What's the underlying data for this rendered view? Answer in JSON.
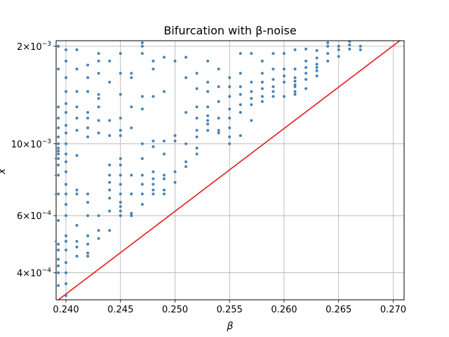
{
  "chart_data": {
    "type": "scatter",
    "title": "Bifurcation with β-noise",
    "xlabel": "β",
    "ylabel": "x",
    "xlim": [
      0.2391,
      0.271
    ],
    "ylim": [
      0.00033,
      0.00208
    ],
    "y_scale": "log",
    "grid": true,
    "x_ticks": [
      {
        "value": 0.24,
        "label": "0.240"
      },
      {
        "value": 0.245,
        "label": "0.245"
      },
      {
        "value": 0.25,
        "label": "0.250"
      },
      {
        "value": 0.255,
        "label": "0.255"
      },
      {
        "value": 0.26,
        "label": "0.260"
      },
      {
        "value": 0.265,
        "label": "0.265"
      },
      {
        "value": 0.27,
        "label": "0.270"
      }
    ],
    "y_ticks": [
      {
        "value": 0.0004,
        "mantissa": "4",
        "exponent": "−4"
      },
      {
        "value": 0.0006,
        "mantissa": "6",
        "exponent": "−4"
      },
      {
        "value": 0.001,
        "mantissa": "10",
        "exponent": "−3"
      },
      {
        "value": 0.002,
        "mantissa": "2",
        "exponent": "−3"
      }
    ],
    "y_ticks_minor": [
      0.0005,
      0.0007,
      0.0008,
      0.0009
    ],
    "colors": {
      "points": "#4682b4",
      "line": "#e31a1c",
      "grid": "#b0b0b0"
    },
    "boundary_line": {
      "x": [
        0.2391,
        0.2706
      ],
      "y": [
        0.000326,
        0.00208
      ]
    },
    "points": [
      [
        0.2393,
        0.000365
      ],
      [
        0.2393,
        0.0004
      ],
      [
        0.2393,
        0.00042
      ],
      [
        0.2393,
        0.00044
      ],
      [
        0.2393,
        0.00047
      ],
      [
        0.2393,
        0.00049
      ],
      [
        0.2393,
        0.00058
      ],
      [
        0.2393,
        0.0007
      ],
      [
        0.2393,
        0.0008
      ],
      [
        0.2393,
        0.00086
      ],
      [
        0.2393,
        0.0009
      ],
      [
        0.2393,
        0.00093
      ],
      [
        0.2393,
        0.00095
      ],
      [
        0.2393,
        0.00097
      ],
      [
        0.2393,
        0.001
      ],
      [
        0.2393,
        0.00105
      ],
      [
        0.2393,
        0.00112
      ],
      [
        0.2393,
        0.0012
      ],
      [
        0.2393,
        0.0013
      ],
      [
        0.2393,
        0.0017
      ],
      [
        0.2393,
        0.002
      ],
      [
        0.24,
        0.00034
      ],
      [
        0.24,
        0.00037
      ],
      [
        0.24,
        0.0004
      ],
      [
        0.24,
        0.00043
      ],
      [
        0.24,
        0.00047
      ],
      [
        0.24,
        0.0005
      ],
      [
        0.24,
        0.00052
      ],
      [
        0.24,
        0.0006
      ],
      [
        0.24,
        0.00065
      ],
      [
        0.24,
        0.0007
      ],
      [
        0.24,
        0.00075
      ],
      [
        0.24,
        0.00082
      ],
      [
        0.24,
        0.00088
      ],
      [
        0.24,
        0.00093
      ],
      [
        0.24,
        0.001
      ],
      [
        0.24,
        0.00108
      ],
      [
        0.24,
        0.00114
      ],
      [
        0.24,
        0.00125
      ],
      [
        0.24,
        0.00133
      ],
      [
        0.24,
        0.00145
      ],
      [
        0.24,
        0.0016
      ],
      [
        0.24,
        0.0018
      ],
      [
        0.24,
        0.00195
      ],
      [
        0.241,
        0.00045
      ],
      [
        0.241,
        0.00048
      ],
      [
        0.241,
        0.0005
      ],
      [
        0.241,
        0.00056
      ],
      [
        0.241,
        0.0007
      ],
      [
        0.241,
        0.00072
      ],
      [
        0.241,
        0.00092
      ],
      [
        0.241,
        0.0011
      ],
      [
        0.241,
        0.0012
      ],
      [
        0.241,
        0.0013
      ],
      [
        0.241,
        0.00145
      ],
      [
        0.241,
        0.0017
      ],
      [
        0.241,
        0.00195
      ],
      [
        0.242,
        0.00045
      ],
      [
        0.242,
        0.00046
      ],
      [
        0.242,
        0.00049
      ],
      [
        0.242,
        0.00052
      ],
      [
        0.242,
        0.0006
      ],
      [
        0.242,
        0.00066
      ],
      [
        0.242,
        0.0007
      ],
      [
        0.242,
        0.00105
      ],
      [
        0.242,
        0.00112
      ],
      [
        0.242,
        0.0012
      ],
      [
        0.242,
        0.00125
      ],
      [
        0.242,
        0.00145
      ],
      [
        0.242,
        0.0016
      ],
      [
        0.242,
        0.00175
      ],
      [
        0.243,
        0.00051
      ],
      [
        0.243,
        0.00054
      ],
      [
        0.243,
        0.0006
      ],
      [
        0.243,
        0.00108
      ],
      [
        0.243,
        0.00118
      ],
      [
        0.243,
        0.0013
      ],
      [
        0.243,
        0.00138
      ],
      [
        0.243,
        0.00142
      ],
      [
        0.243,
        0.00165
      ],
      [
        0.243,
        0.0018
      ],
      [
        0.243,
        0.0019
      ],
      [
        0.244,
        0.00054
      ],
      [
        0.244,
        0.00062
      ],
      [
        0.244,
        0.00068
      ],
      [
        0.244,
        0.00072
      ],
      [
        0.244,
        0.00076
      ],
      [
        0.244,
        0.0008
      ],
      [
        0.244,
        0.00086
      ],
      [
        0.244,
        0.00106
      ],
      [
        0.244,
        0.00118
      ],
      [
        0.244,
        0.00155
      ],
      [
        0.244,
        0.0018
      ],
      [
        0.245,
        0.0006
      ],
      [
        0.245,
        0.00062
      ],
      [
        0.245,
        0.00064
      ],
      [
        0.245,
        0.00066
      ],
      [
        0.245,
        0.0007
      ],
      [
        0.245,
        0.00075
      ],
      [
        0.245,
        0.0008
      ],
      [
        0.245,
        0.00086
      ],
      [
        0.245,
        0.0009
      ],
      [
        0.245,
        0.00106
      ],
      [
        0.245,
        0.0011
      ],
      [
        0.245,
        0.0012
      ],
      [
        0.245,
        0.00142
      ],
      [
        0.245,
        0.00165
      ],
      [
        0.245,
        0.0019
      ],
      [
        0.246,
        0.0006
      ],
      [
        0.246,
        0.00061
      ],
      [
        0.246,
        0.0007
      ],
      [
        0.246,
        0.0008
      ],
      [
        0.246,
        0.00112
      ],
      [
        0.246,
        0.0013
      ],
      [
        0.246,
        0.0016
      ],
      [
        0.246,
        0.00165
      ],
      [
        0.247,
        0.00065
      ],
      [
        0.247,
        0.0007
      ],
      [
        0.247,
        0.00075
      ],
      [
        0.247,
        0.0008
      ],
      [
        0.247,
        0.0009
      ],
      [
        0.247,
        0.001
      ],
      [
        0.247,
        0.00128
      ],
      [
        0.247,
        0.0014
      ],
      [
        0.247,
        0.0019
      ],
      [
        0.247,
        0.002
      ],
      [
        0.247,
        0.00205
      ],
      [
        0.248,
        0.0007
      ],
      [
        0.248,
        0.00072
      ],
      [
        0.248,
        0.00075
      ],
      [
        0.248,
        0.00078
      ],
      [
        0.248,
        0.00082
      ],
      [
        0.248,
        0.00098
      ],
      [
        0.248,
        0.00102
      ],
      [
        0.248,
        0.0014
      ],
      [
        0.248,
        0.0017
      ],
      [
        0.248,
        0.0018
      ],
      [
        0.249,
        0.0007
      ],
      [
        0.249,
        0.00072
      ],
      [
        0.249,
        0.00078
      ],
      [
        0.249,
        0.0008
      ],
      [
        0.249,
        0.00093
      ],
      [
        0.249,
        0.00102
      ],
      [
        0.249,
        0.00145
      ],
      [
        0.249,
        0.00185
      ],
      [
        0.25,
        0.00076
      ],
      [
        0.25,
        0.00082
      ],
      [
        0.25,
        0.00102
      ],
      [
        0.25,
        0.00106
      ],
      [
        0.25,
        0.0018
      ],
      [
        0.251,
        0.00085
      ],
      [
        0.251,
        0.00088
      ],
      [
        0.251,
        0.001
      ],
      [
        0.251,
        0.00125
      ],
      [
        0.251,
        0.0016
      ],
      [
        0.251,
        0.00185
      ],
      [
        0.252,
        0.00093
      ],
      [
        0.252,
        0.00097
      ],
      [
        0.252,
        0.00105
      ],
      [
        0.252,
        0.0011
      ],
      [
        0.252,
        0.0012
      ],
      [
        0.252,
        0.0013
      ],
      [
        0.252,
        0.00148
      ],
      [
        0.252,
        0.00165
      ],
      [
        0.253,
        0.0011
      ],
      [
        0.253,
        0.00115
      ],
      [
        0.253,
        0.00118
      ],
      [
        0.253,
        0.00122
      ],
      [
        0.253,
        0.0013
      ],
      [
        0.253,
        0.00145
      ],
      [
        0.253,
        0.00155
      ],
      [
        0.253,
        0.0018
      ],
      [
        0.254,
        0.00108
      ],
      [
        0.254,
        0.0011
      ],
      [
        0.254,
        0.0012
      ],
      [
        0.254,
        0.00135
      ],
      [
        0.254,
        0.0015
      ],
      [
        0.254,
        0.0017
      ],
      [
        0.255,
        0.001
      ],
      [
        0.255,
        0.00105
      ],
      [
        0.255,
        0.00112
      ],
      [
        0.255,
        0.0012
      ],
      [
        0.255,
        0.00128
      ],
      [
        0.255,
        0.0014
      ],
      [
        0.255,
        0.0015
      ],
      [
        0.255,
        0.0016
      ],
      [
        0.256,
        0.00106
      ],
      [
        0.256,
        0.00125
      ],
      [
        0.256,
        0.00132
      ],
      [
        0.256,
        0.00142
      ],
      [
        0.256,
        0.0015
      ],
      [
        0.256,
        0.00165
      ],
      [
        0.256,
        0.0019
      ],
      [
        0.257,
        0.00118
      ],
      [
        0.257,
        0.00132
      ],
      [
        0.257,
        0.00138
      ],
      [
        0.257,
        0.00145
      ],
      [
        0.257,
        0.00155
      ],
      [
        0.257,
        0.0019
      ],
      [
        0.258,
        0.00135
      ],
      [
        0.258,
        0.0014
      ],
      [
        0.258,
        0.00148
      ],
      [
        0.258,
        0.00155
      ],
      [
        0.258,
        0.00165
      ],
      [
        0.258,
        0.0018
      ],
      [
        0.259,
        0.0014
      ],
      [
        0.259,
        0.00145
      ],
      [
        0.259,
        0.0015
      ],
      [
        0.259,
        0.00158
      ],
      [
        0.259,
        0.0017
      ],
      [
        0.259,
        0.0019
      ],
      [
        0.26,
        0.0014
      ],
      [
        0.26,
        0.00155
      ],
      [
        0.26,
        0.00162
      ],
      [
        0.26,
        0.0017
      ],
      [
        0.26,
        0.0019
      ],
      [
        0.261,
        0.00142
      ],
      [
        0.261,
        0.00145
      ],
      [
        0.261,
        0.0015
      ],
      [
        0.261,
        0.00152
      ],
      [
        0.261,
        0.00156
      ],
      [
        0.261,
        0.0016
      ],
      [
        0.261,
        0.0017
      ],
      [
        0.261,
        0.00195
      ],
      [
        0.262,
        0.00148
      ],
      [
        0.262,
        0.00158
      ],
      [
        0.262,
        0.00165
      ],
      [
        0.262,
        0.00172
      ],
      [
        0.262,
        0.0018
      ],
      [
        0.262,
        0.00196
      ],
      [
        0.263,
        0.00162
      ],
      [
        0.263,
        0.00168
      ],
      [
        0.263,
        0.00172
      ],
      [
        0.263,
        0.00176
      ],
      [
        0.263,
        0.00184
      ],
      [
        0.263,
        0.00194
      ],
      [
        0.264,
        0.0018
      ],
      [
        0.264,
        0.0019
      ],
      [
        0.264,
        0.002
      ],
      [
        0.264,
        0.00205
      ],
      [
        0.265,
        0.00186
      ],
      [
        0.265,
        0.00195
      ],
      [
        0.265,
        0.002
      ],
      [
        0.266,
        0.00196
      ],
      [
        0.266,
        0.00202
      ],
      [
        0.266,
        0.00207
      ],
      [
        0.267,
        0.00195
      ],
      [
        0.267,
        0.002
      ]
    ]
  }
}
